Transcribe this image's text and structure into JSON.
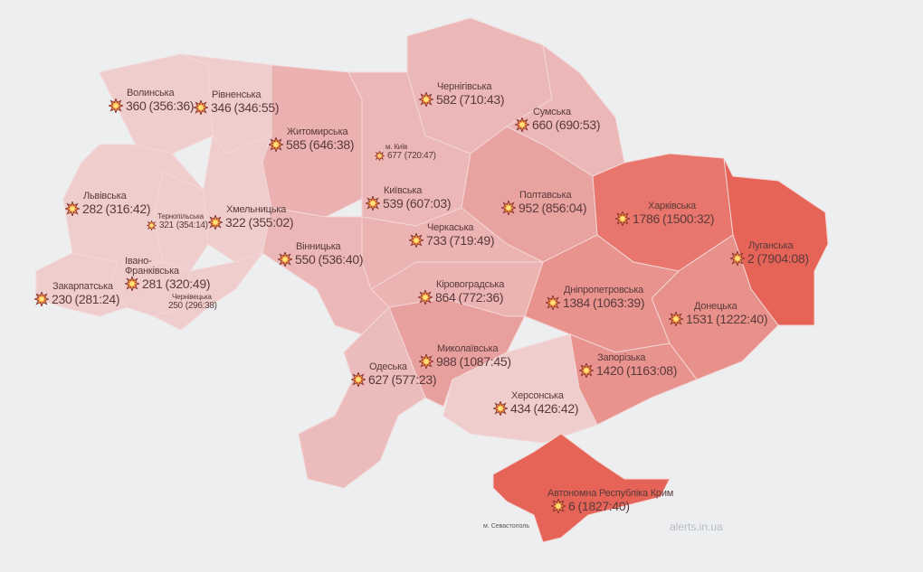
{
  "colors": {
    "background": "#edeef0",
    "level1": "#efcdcd",
    "level2": "#eab1b0",
    "level3": "#e8a09e",
    "level4": "#e8766d",
    "level5": "#e56457",
    "text": "#5a3a3a"
  },
  "icon": "explosion-icon",
  "regions": [
    {
      "id": "volyn",
      "name": "Волинська",
      "count": "360",
      "duration": "(356:36)"
    },
    {
      "id": "rivne",
      "name": "Рівненська",
      "count": "346",
      "duration": "(346:55)"
    },
    {
      "id": "zhytomyr",
      "name": "Житомирська",
      "count": "585",
      "duration": "(646:38)"
    },
    {
      "id": "kyiv-city",
      "name": "м. Київ",
      "count": "677",
      "duration": "(720:47)"
    },
    {
      "id": "chernihiv",
      "name": "Чернігівська",
      "count": "582",
      "duration": "(710:43)"
    },
    {
      "id": "sumy",
      "name": "Сумська",
      "count": "660",
      "duration": "(690:53)"
    },
    {
      "id": "lviv",
      "name": "Львівська",
      "count": "282",
      "duration": "(316:42)"
    },
    {
      "id": "ternopil",
      "name": "Тернопільська",
      "count": "321",
      "duration": "(354:14)"
    },
    {
      "id": "khmelnytskyi",
      "name": "Хмельницька",
      "count": "322",
      "duration": "(355:02)"
    },
    {
      "id": "kyiv",
      "name": "Київська",
      "count": "539",
      "duration": "(607:03)"
    },
    {
      "id": "poltava",
      "name": "Полтавська",
      "count": "952",
      "duration": "(856:04)"
    },
    {
      "id": "kharkiv",
      "name": "Харківська",
      "count": "1786",
      "duration": "(1500:32)"
    },
    {
      "id": "cherkasy",
      "name": "Черкаська",
      "count": "733",
      "duration": "(719:49)"
    },
    {
      "id": "luhansk",
      "name": "Луганська",
      "count": "2",
      "duration": "(7904:08)"
    },
    {
      "id": "vinnytsia",
      "name": "Вінницька",
      "count": "550",
      "duration": "(536:40)"
    },
    {
      "id": "ivano-frankivsk",
      "name": "Івано-Франківська",
      "count": "281",
      "duration": "(320:49)"
    },
    {
      "id": "zakarpattia",
      "name": "Закарпатська",
      "count": "230",
      "duration": "(281:24)"
    },
    {
      "id": "chernivtsi",
      "name": "Чернівецька",
      "count": "250",
      "duration": "(296:38)"
    },
    {
      "id": "kirovohrad",
      "name": "Кіровоградська",
      "count": "864",
      "duration": "(772:36)"
    },
    {
      "id": "dnipro",
      "name": "Дніпропетровська",
      "count": "1384",
      "duration": "(1063:39)"
    },
    {
      "id": "donetsk",
      "name": "Донецька",
      "count": "1531",
      "duration": "(1222:40)"
    },
    {
      "id": "mykolaiv",
      "name": "Миколаївська",
      "count": "988",
      "duration": "(1087:45)"
    },
    {
      "id": "odesa",
      "name": "Одеська",
      "count": "627",
      "duration": "(577:23)"
    },
    {
      "id": "zaporizhzhia",
      "name": "Запорізька",
      "count": "1420",
      "duration": "(1163:08)"
    },
    {
      "id": "kherson",
      "name": "Херсонська",
      "count": "434",
      "duration": "(426:42)"
    },
    {
      "id": "crimea",
      "name": "Автономна Республіка Крим",
      "count": "6",
      "duration": "(1827:40)"
    }
  ],
  "sevastopol": "м. Севастополь",
  "watermark": "alerts.in.ua"
}
